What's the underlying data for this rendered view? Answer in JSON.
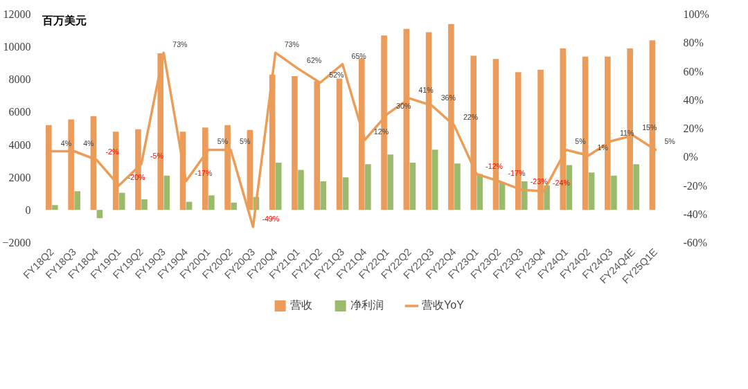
{
  "chart_data": {
    "type": "bar",
    "ylabel": "百万美元",
    "categories": [
      "FY18Q2",
      "FY18Q3",
      "FY18Q4",
      "FY19Q1",
      "FY19Q2",
      "FY19Q3",
      "FY19Q4",
      "FY20Q1",
      "FY20Q2",
      "FY20Q3",
      "FY20Q4",
      "FY21Q1",
      "FY21Q2",
      "FY21Q3",
      "FY21Q4",
      "FY22Q1",
      "FY22Q2",
      "FY22Q3",
      "FY22Q4",
      "FY23Q1",
      "FY23Q2",
      "FY23Q3",
      "FY23Q4",
      "FY24Q1",
      "FY24Q2",
      "FY24Q3",
      "FY24Q4E",
      "FY25Q1E"
    ],
    "series": [
      {
        "name": "营收",
        "type": "bar",
        "color": "#eb9b5a",
        "values": [
          5200,
          5550,
          5750,
          4800,
          4950,
          9600,
          4800,
          5050,
          5200,
          4900,
          8300,
          8200,
          7900,
          8050,
          9300,
          10700,
          11100,
          10900,
          11400,
          9450,
          9250,
          8450,
          8600,
          9900,
          9400,
          9400,
          9900,
          10400
        ]
      },
      {
        "name": "净利润",
        "type": "bar",
        "color": "#9bbb6c",
        "values": [
          300,
          1150,
          -500,
          1050,
          650,
          2100,
          500,
          900,
          450,
          800,
          2900,
          2450,
          1750,
          2000,
          2800,
          3400,
          2900,
          3700,
          2850,
          2200,
          1700,
          1750,
          1500,
          2750,
          2300,
          2100,
          2800,
          null
        ]
      },
      {
        "name": "营收YoY",
        "type": "line",
        "axis": "y2",
        "color": "#ed9c55",
        "values": [
          4,
          4,
          -2,
          -20,
          -5,
          73,
          -17,
          5,
          5,
          -49,
          73,
          62,
          52,
          65,
          12,
          30,
          41,
          36,
          22,
          -12,
          -17,
          -23,
          -24,
          5,
          1,
          11,
          15,
          5
        ],
        "value_labels": [
          "4%",
          "4%",
          "-2%",
          "-20%",
          "-5%",
          "73%",
          "-17%",
          "5%",
          "5%",
          "-49%",
          "73%",
          "62%",
          "52%",
          "65%",
          "12%",
          "30%",
          "41%",
          "36%",
          "22%",
          "-12%",
          "-17%",
          "-23%",
          "-24%",
          "5%",
          "1%",
          "11%",
          "15%",
          "5%"
        ]
      }
    ],
    "ylim": [
      -2000,
      12000
    ],
    "yticks": [
      -2000,
      0,
      2000,
      4000,
      6000,
      8000,
      10000,
      12000
    ],
    "y2lim": [
      -60,
      100
    ],
    "y2ticks": [
      {
        "value": -60,
        "label": "-60%"
      },
      {
        "value": -40,
        "label": "-40%"
      },
      {
        "value": -20,
        "label": "-20%"
      },
      {
        "value": 0,
        "label": "0%"
      },
      {
        "value": 20,
        "label": "20%"
      },
      {
        "value": 40,
        "label": "40%"
      },
      {
        "value": 60,
        "label": "60%"
      },
      {
        "value": 80,
        "label": "80%"
      },
      {
        "value": 100,
        "label": "100%"
      }
    ],
    "grid": false,
    "legend": "bottom",
    "marker": "none",
    "line_style": "solid"
  }
}
